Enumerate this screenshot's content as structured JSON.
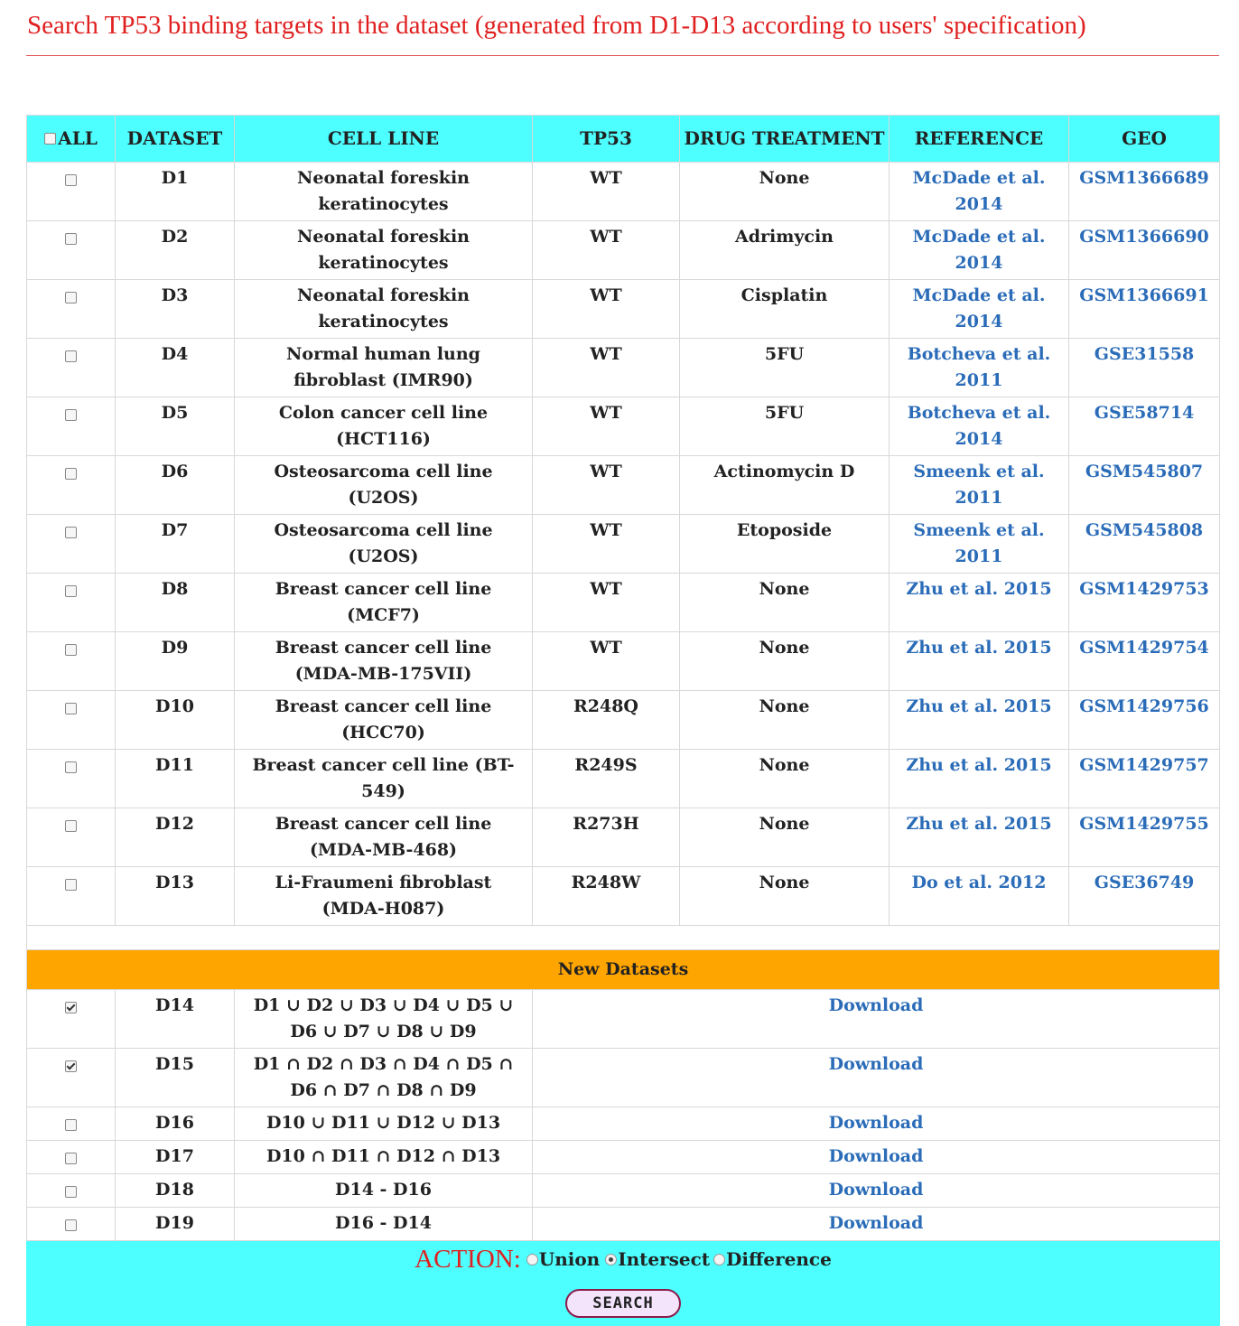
{
  "title": "Search TP53 binding targets in the dataset (generated from D1-D13 according to users' specification)",
  "headers": {
    "all": "ALL",
    "dataset": "DATASET",
    "cell_line": "CELL LINE",
    "tp53": "TP53",
    "drug": "DRUG TREATMENT",
    "reference": "REFERENCE",
    "geo": "GEO"
  },
  "datasets": [
    {
      "id": "D1",
      "cell_line": "Neonatal foreskin keratinocytes",
      "tp53": "WT",
      "drug": "None",
      "reference": "McDade et al. 2014",
      "geo": "GSM1366689"
    },
    {
      "id": "D2",
      "cell_line": "Neonatal foreskin keratinocytes",
      "tp53": "WT",
      "drug": "Adrimycin",
      "reference": "McDade et al. 2014",
      "geo": "GSM1366690"
    },
    {
      "id": "D3",
      "cell_line": "Neonatal foreskin keratinocytes",
      "tp53": "WT",
      "drug": "Cisplatin",
      "reference": "McDade et al. 2014",
      "geo": "GSM1366691"
    },
    {
      "id": "D4",
      "cell_line": "Normal human lung fibroblast (IMR90)",
      "tp53": "WT",
      "drug": "5FU",
      "reference": "Botcheva et al. 2011",
      "geo": "GSE31558"
    },
    {
      "id": "D5",
      "cell_line": "Colon cancer cell line (HCT116)",
      "tp53": "WT",
      "drug": "5FU",
      "reference": "Botcheva et al. 2014",
      "geo": "GSE58714"
    },
    {
      "id": "D6",
      "cell_line": "Osteosarcoma cell line (U2OS)",
      "tp53": "WT",
      "drug": "Actinomycin D",
      "reference": "Smeenk et al. 2011",
      "geo": "GSM545807"
    },
    {
      "id": "D7",
      "cell_line": "Osteosarcoma cell line (U2OS)",
      "tp53": "WT",
      "drug": "Etoposide",
      "reference": "Smeenk et al. 2011",
      "geo": "GSM545808"
    },
    {
      "id": "D8",
      "cell_line": "Breast cancer cell line (MCF7)",
      "tp53": "WT",
      "drug": "None",
      "reference": "Zhu et al. 2015",
      "geo": "GSM1429753"
    },
    {
      "id": "D9",
      "cell_line": "Breast cancer cell line (MDA-MB-175VII)",
      "tp53": "WT",
      "drug": "None",
      "reference": "Zhu et al. 2015",
      "geo": "GSM1429754"
    },
    {
      "id": "D10",
      "cell_line": "Breast cancer cell line (HCC70)",
      "tp53": "R248Q",
      "drug": "None",
      "reference": "Zhu et al. 2015",
      "geo": "GSM1429756"
    },
    {
      "id": "D11",
      "cell_line": "Breast cancer cell line (BT-549)",
      "tp53": "R249S",
      "drug": "None",
      "reference": "Zhu et al. 2015",
      "geo": "GSM1429757"
    },
    {
      "id": "D12",
      "cell_line": "Breast cancer cell line (MDA-MB-468)",
      "tp53": "R273H",
      "drug": "None",
      "reference": "Zhu et al. 2015",
      "geo": "GSM1429755"
    },
    {
      "id": "D13",
      "cell_line": "Li-Fraumeni fibroblast (MDA-H087)",
      "tp53": "R248W",
      "drug": "None",
      "reference": "Do et al. 2012",
      "geo": "GSE36749"
    }
  ],
  "new_datasets_label": "New Datasets",
  "new_datasets": [
    {
      "id": "D14",
      "definition": "D1 ∪ D2 ∪ D3 ∪ D4 ∪ D5 ∪ D6 ∪ D7 ∪ D8 ∪ D9",
      "download": "Download",
      "checked": true
    },
    {
      "id": "D15",
      "definition": "D1 ∩ D2 ∩ D3 ∩ D4 ∩ D5 ∩ D6 ∩ D7 ∩ D8 ∩ D9",
      "download": "Download",
      "checked": true
    },
    {
      "id": "D16",
      "definition": "D10 ∪ D11 ∪ D12 ∪ D13",
      "download": "Download",
      "checked": false
    },
    {
      "id": "D17",
      "definition": "D10 ∩ D11 ∩ D12 ∩ D13",
      "download": "Download",
      "checked": false
    },
    {
      "id": "D18",
      "definition": "D14 - D16",
      "download": "Download",
      "checked": false
    },
    {
      "id": "D19",
      "definition": "D16 - D14",
      "download": "Download",
      "checked": false
    }
  ],
  "action": {
    "label": "ACTION:",
    "options": [
      "Union",
      "Intersect",
      "Difference"
    ],
    "selected": "Intersect"
  },
  "search_button": "SEARCH"
}
